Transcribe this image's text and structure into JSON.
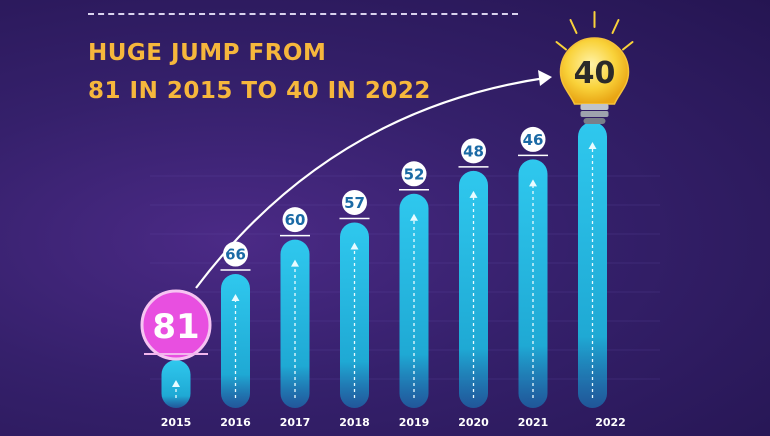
{
  "title": {
    "line1": "HUGE JUMP FROM",
    "line2": "81 IN 2015 TO 40 IN 2022"
  },
  "colors": {
    "title": "#f6b73c",
    "bar": "#21b7dc",
    "highlight_first": "#e84fe0",
    "highlight_last": "#f7c531",
    "background": "#35206b"
  },
  "chart_data": {
    "type": "bar",
    "title": "HUGE JUMP FROM 81 IN 2015 TO 40 IN 2022",
    "categories": [
      "2015",
      "2016",
      "2017",
      "2018",
      "2019",
      "2020",
      "2021",
      "2022"
    ],
    "values": [
      81,
      66,
      60,
      57,
      52,
      48,
      46,
      40
    ],
    "labels": [
      "81",
      "66",
      "60",
      "57",
      "52",
      "48",
      "46",
      "40"
    ],
    "xlabel": "",
    "ylabel": "",
    "grid": true,
    "annotation": "arrow from 2015 to 2022; 2022 value shown in a lightbulb",
    "highlight": {
      "2015": "circle-pink",
      "2022": "lightbulb-yellow"
    }
  }
}
